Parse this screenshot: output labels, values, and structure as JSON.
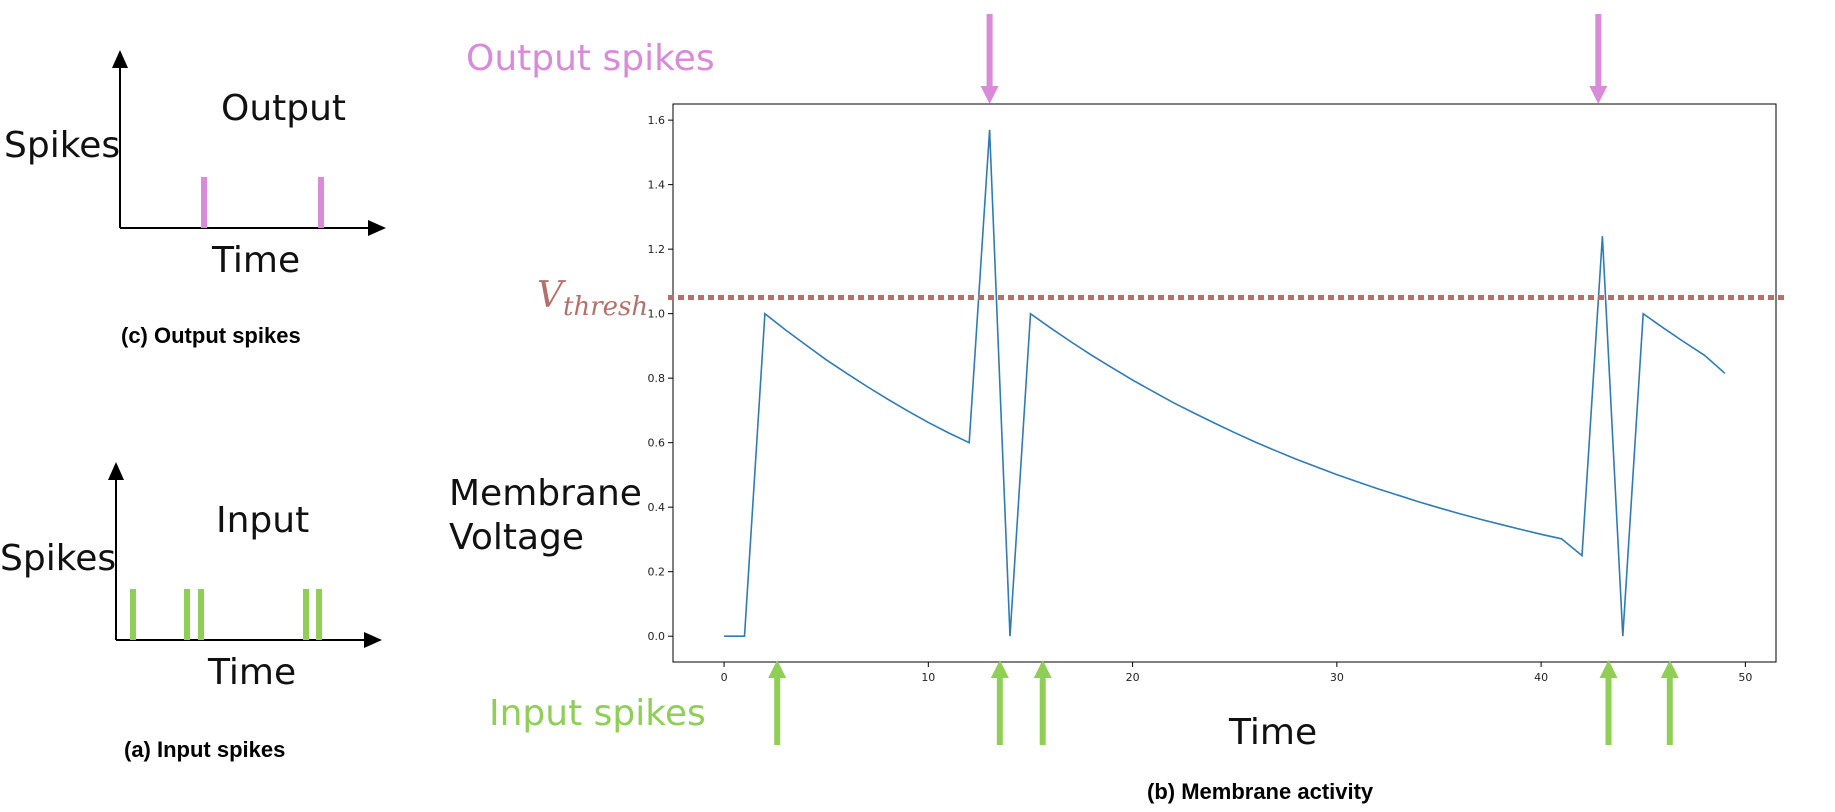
{
  "colors": {
    "output": "#d98ad9",
    "input": "#8fcf55",
    "trace": "#2f7bb4",
    "threshold": "#b5706c"
  },
  "panel_c": {
    "ylabel": "Spikes",
    "title": "Output",
    "xlabel": "Time",
    "caption": "(c) Output spikes"
  },
  "panel_a": {
    "ylabel": "Spikes",
    "title": "Input",
    "xlabel": "Time",
    "caption": "(a) Input spikes"
  },
  "panel_b": {
    "output_label": "Output spikes",
    "input_label": "Input spikes",
    "ylabel_line1": "Membrane",
    "ylabel_line2": "Voltage",
    "xlabel": "Time",
    "threshold_symbol": "V",
    "threshold_subscript": "thresh",
    "caption": "(b) Membrane activity"
  },
  "chart_data": {
    "type": "line",
    "xlim": [
      -2.5,
      51.5
    ],
    "ylim": [
      -0.08,
      1.65
    ],
    "xticks": [
      0,
      10,
      20,
      30,
      40,
      50
    ],
    "yticks": [
      0.0,
      0.2,
      0.4,
      0.6,
      0.8,
      1.0,
      1.2,
      1.4,
      1.6
    ],
    "threshold": 1.05,
    "output_spike_times": [
      13,
      42.8
    ],
    "input_spike_times": [
      2.6,
      13.5,
      15.6,
      43.3,
      46.3
    ],
    "series": [
      {
        "points": [
          [
            0,
            0
          ],
          [
            1,
            0
          ],
          [
            2,
            1.0
          ],
          [
            3,
            0.95
          ],
          [
            4,
            0.903
          ],
          [
            5,
            0.857
          ],
          [
            6,
            0.815
          ],
          [
            7,
            0.774
          ],
          [
            8,
            0.735
          ],
          [
            9,
            0.698
          ],
          [
            10,
            0.663
          ],
          [
            11,
            0.63
          ],
          [
            12,
            0.6
          ],
          [
            13,
            1.57
          ],
          [
            14,
            0.0
          ],
          [
            15,
            1.0
          ],
          [
            16,
            0.955
          ],
          [
            17,
            0.912
          ],
          [
            18,
            0.871
          ],
          [
            19,
            0.832
          ],
          [
            20,
            0.794
          ],
          [
            21,
            0.759
          ],
          [
            22,
            0.724
          ],
          [
            23,
            0.692
          ],
          [
            24,
            0.661
          ],
          [
            25,
            0.631
          ],
          [
            26,
            0.602
          ],
          [
            27,
            0.575
          ],
          [
            28,
            0.549
          ],
          [
            29,
            0.525
          ],
          [
            30,
            0.501
          ],
          [
            31,
            0.479
          ],
          [
            32,
            0.457
          ],
          [
            33,
            0.437
          ],
          [
            34,
            0.417
          ],
          [
            35,
            0.398
          ],
          [
            36,
            0.38
          ],
          [
            37,
            0.363
          ],
          [
            38,
            0.347
          ],
          [
            39,
            0.331
          ],
          [
            40,
            0.316
          ],
          [
            41,
            0.302
          ],
          [
            42,
            0.25
          ],
          [
            43,
            1.24
          ],
          [
            44,
            0.0
          ],
          [
            45,
            1.0
          ],
          [
            46,
            0.955
          ],
          [
            47,
            0.912
          ],
          [
            48,
            0.871
          ],
          [
            49,
            0.815
          ]
        ]
      }
    ]
  }
}
